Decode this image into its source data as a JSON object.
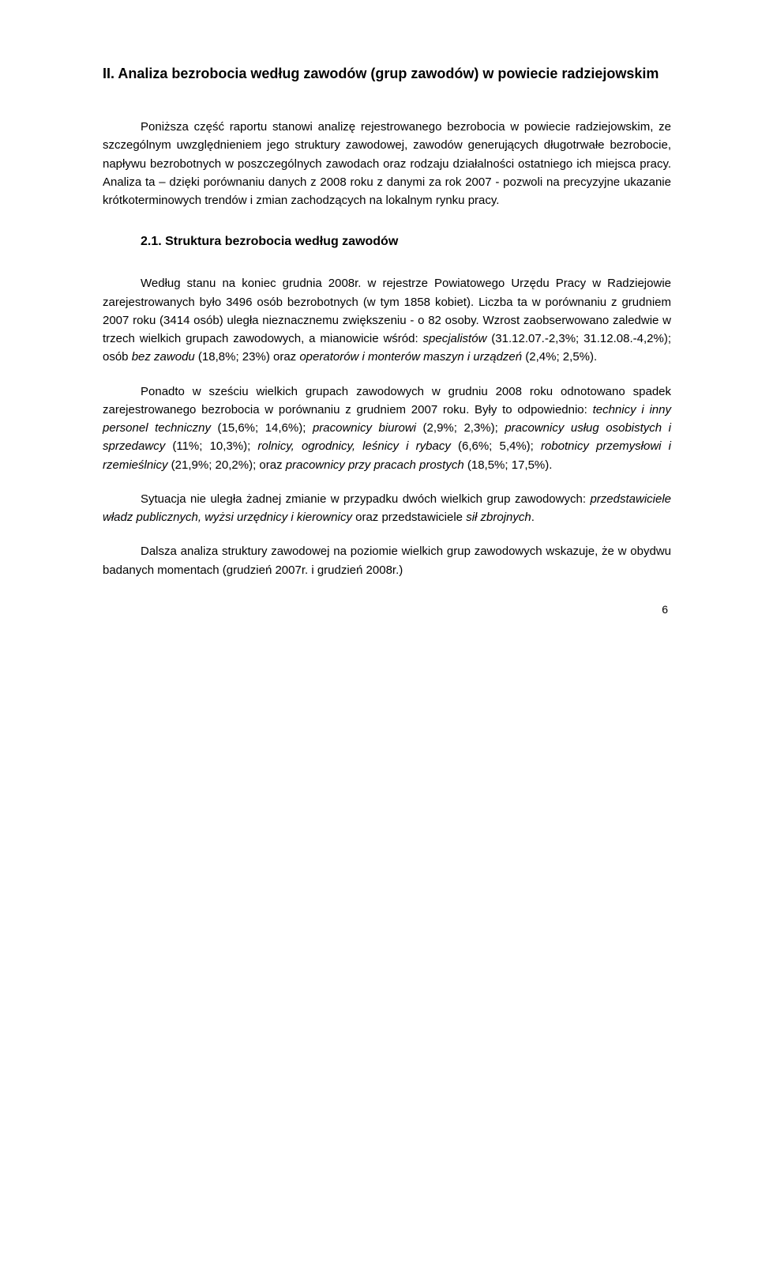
{
  "title": "II. Analiza bezrobocia według zawodów (grup zawodów) w powiecie radziejowskim",
  "para1": "Poniższa część raportu stanowi analizę rejestrowanego bezrobocia w powiecie radziejowskim, ze szczególnym uwzględnieniem jego struktury zawodowej, zawodów generujących długotrwałe bezrobocie, napływu bezrobotnych w poszczególnych zawodach oraz rodzaju działalności ostatniego ich miejsca pracy. Analiza ta – dzięki porównaniu danych z 2008 roku z danymi za rok 2007 - pozwoli na precyzyjne ukazanie krótkoterminowych trendów i zmian zachodzących na lokalnym rynku pracy.",
  "subheading": "2.1. Struktura bezrobocia według zawodów",
  "p2a": "Według stanu na koniec grudnia 2008r. w rejestrze Powiatowego Urzędu Pracy w Radziejowie zarejestrowanych było 3496 osób bezrobotnych (w tym 1858 kobiet). Liczba ta w porównaniu z grudniem 2007 roku (3414 osób) uległa nieznacznemu zwiększeniu - o 82 osoby. Wzrost zaobserwowano zaledwie w trzech wielkich grupach zawodowych, a mianowicie wśród: ",
  "p2_i1": "specjalistów",
  "p2b": " (31.12.07.-2,3%; 31.12.08.-4,2%); osób ",
  "p2_i2": "bez zawodu",
  "p2c": " (18,8%; 23%) oraz ",
  "p2_i3": "operatorów i monterów maszyn i urządzeń",
  "p2d": " (2,4%; 2,5%).",
  "p3a": "Ponadto w sześciu wielkich grupach zawodowych w grudniu 2008 roku odnotowano spadek zarejestrowanego bezrobocia w porównaniu z grudniem 2007 roku. Były to odpowiednio: ",
  "p3_i1": "technicy i inny personel techniczny",
  "p3b": " (15,6%; 14,6%); ",
  "p3_i2": "pracownicy biurowi",
  "p3c": " (2,9%; 2,3%); ",
  "p3_i3": "pracownicy usług osobistych i sprzedawcy",
  "p3d": " (11%; 10,3%); ",
  "p3_i4": "rolnicy, ogrodnicy, leśnicy i rybacy",
  "p3e": " (6,6%; 5,4%); ",
  "p3_i5": "robotnicy przemysłowi i rzemieślnicy",
  "p3f": " (21,9%; 20,2%); oraz ",
  "p3_i6": "pracownicy przy pracach prostych",
  "p3g": " (18,5%; 17,5%).",
  "p4a": "Sytuacja nie uległa żadnej zmianie w przypadku dwóch wielkich grup zawodowych: ",
  "p4_i1": "przedstawiciele władz publicznych, wyżsi urzędnicy i kierownicy",
  "p4b": " oraz przedstawiciele ",
  "p4_i2": "sił zbrojnych",
  "p4c": ".",
  "p5": "Dalsza analiza struktury zawodowej na poziomie wielkich grup zawodowych wskazuje, że w obydwu badanych momentach (grudzień 2007r. i grudzień 2008r.)",
  "pageNumber": "6"
}
